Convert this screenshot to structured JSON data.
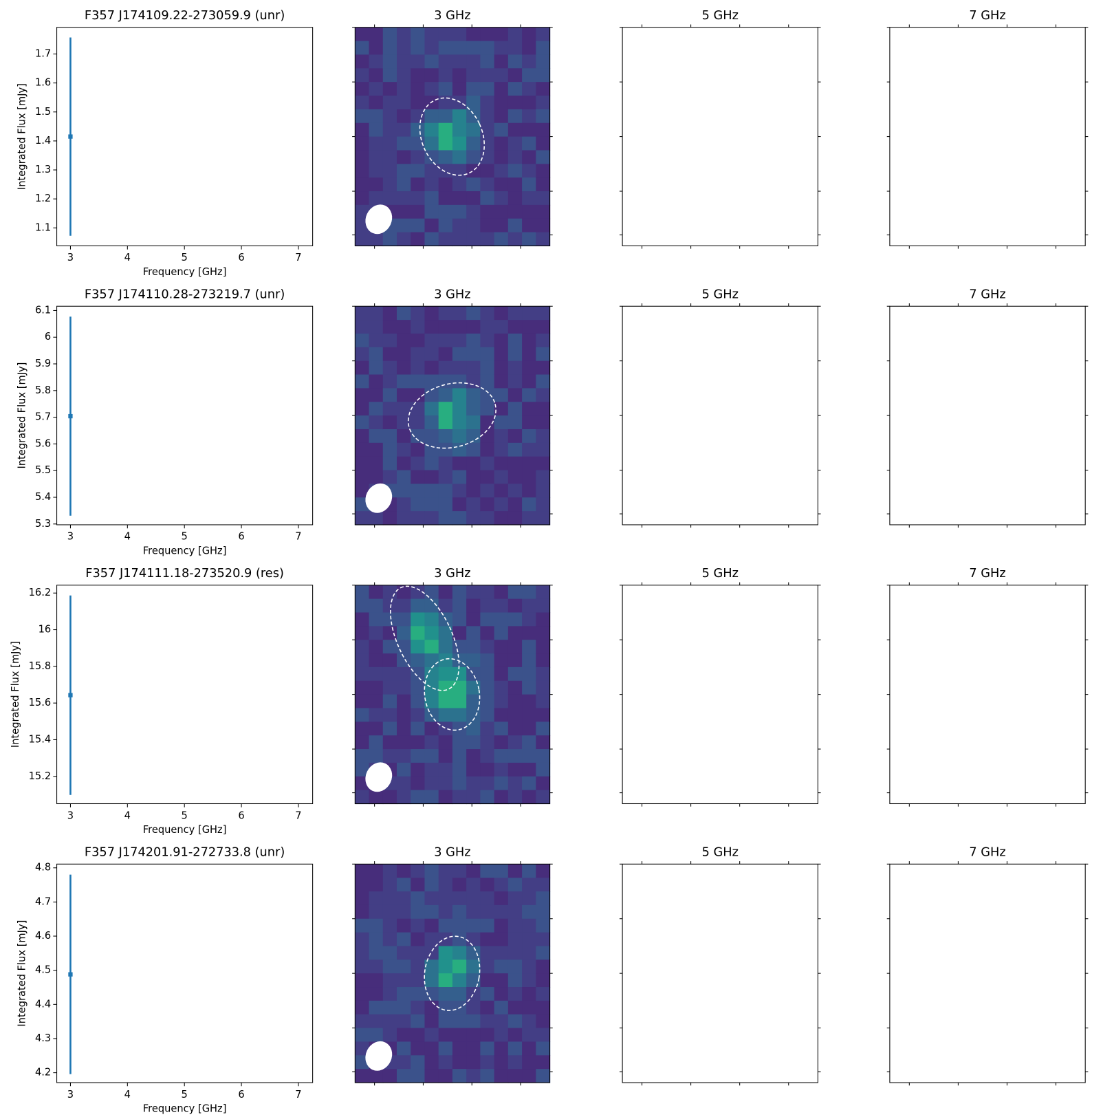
{
  "chart_data": [
    {
      "type": "errorbar",
      "title": "F357 J174109.22-273059.9 (unr)",
      "x_label": "Frequency [GHz]",
      "y_label": "Integrated Flux [mJy]",
      "x": [
        3
      ],
      "values": [
        1.415
      ],
      "errors": [
        0.342
      ],
      "color": "#1f77b4",
      "xlim": [
        2.76,
        7.25
      ],
      "xticks": [
        3,
        4,
        5,
        6,
        7
      ],
      "ylim": [
        1.038,
        1.792
      ],
      "yticks": [
        1.1,
        1.2,
        1.3,
        1.4,
        1.5,
        1.6,
        1.7
      ]
    },
    {
      "type": "errorbar",
      "title": "F357 J174110.28-273219.7 (unr)",
      "x_label": "Frequency [GHz]",
      "y_label": "Integrated Flux [mJy]",
      "x": [
        3
      ],
      "values": [
        5.704
      ],
      "errors": [
        0.373
      ],
      "color": "#1f77b4",
      "xlim": [
        2.76,
        7.25
      ],
      "xticks": [
        3,
        4,
        5,
        6,
        7
      ],
      "ylim": [
        5.297,
        6.116
      ],
      "yticks": [
        5.3,
        5.4,
        5.5,
        5.6,
        5.7,
        5.8,
        5.9,
        6.0,
        6.1
      ]
    },
    {
      "type": "errorbar",
      "title": "F357 J174111.18-273520.9 (res)",
      "x_label": "Frequency [GHz]",
      "y_label": "Integrated Flux [mJy]",
      "x": [
        3
      ],
      "values": [
        15.643
      ],
      "errors": [
        0.544
      ],
      "color": "#1f77b4",
      "xlim": [
        2.76,
        7.25
      ],
      "xticks": [
        3,
        4,
        5,
        6,
        7
      ],
      "ylim": [
        15.051,
        16.243
      ],
      "yticks": [
        15.2,
        15.4,
        15.6,
        15.8,
        16.0,
        16.2
      ]
    },
    {
      "type": "errorbar",
      "title": "F357 J174201.91-272733.8 (unr)",
      "x_label": "Frequency [GHz]",
      "y_label": "Integrated Flux [mJy]",
      "x": [
        3
      ],
      "values": [
        4.488
      ],
      "errors": [
        0.292
      ],
      "color": "#1f77b4",
      "xlim": [
        2.76,
        7.25
      ],
      "xticks": [
        3,
        4,
        5,
        6,
        7
      ],
      "ylim": [
        4.171,
        4.811
      ],
      "yticks": [
        4.2,
        4.3,
        4.4,
        4.5,
        4.6,
        4.7,
        4.8
      ]
    }
  ],
  "cutouts": [
    {
      "titles": [
        "3 GHz",
        "5 GHz",
        "7 GHz"
      ]
    },
    {
      "titles": [
        "3 GHz",
        "5 GHz",
        "7 GHz"
      ]
    },
    {
      "titles": [
        "3 GHz",
        "5 GHz",
        "7 GHz"
      ]
    },
    {
      "titles": [
        "3 GHz",
        "5 GHz",
        "7 GHz"
      ]
    }
  ]
}
